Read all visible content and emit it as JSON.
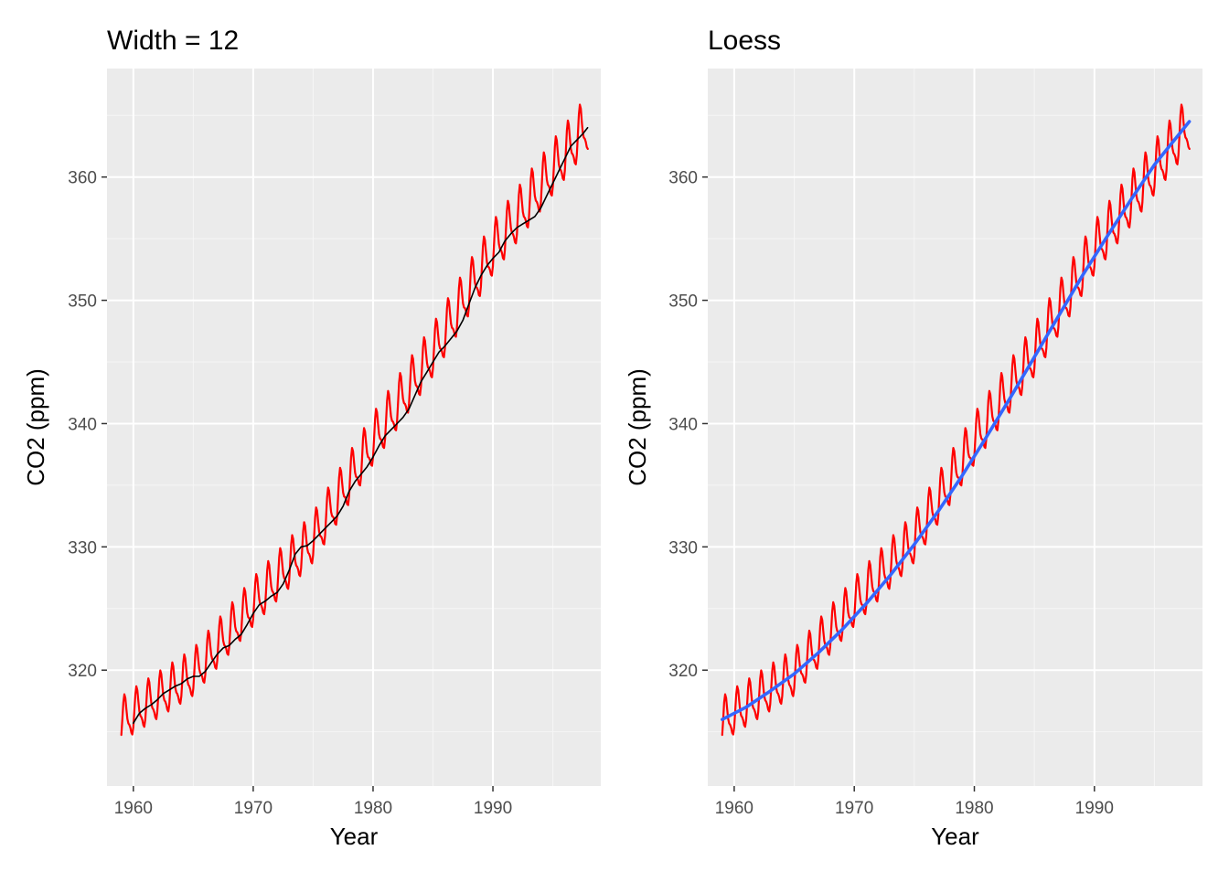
{
  "chart_data": [
    {
      "type": "line",
      "title": "Width = 12",
      "xlabel": "Year",
      "ylabel": "CO2 (ppm)",
      "xlim": [
        1957.8,
        1999.0
      ],
      "ylim": [
        310.6,
        368.8
      ],
      "x_ticks": [
        1960,
        1970,
        1980,
        1990
      ],
      "x_tick_labels": [
        "1960",
        "1970",
        "1980",
        "1990"
      ],
      "y_ticks": [
        320,
        330,
        340,
        350,
        360
      ],
      "y_tick_labels": [
        "320",
        "330",
        "340",
        "350",
        "360"
      ],
      "grid": true,
      "series": [
        {
          "role": "observed",
          "color": "#ff0000",
          "x_start": 1959.0,
          "x_step_months": 1,
          "trend": [
            [
              1959.0,
              315.8
            ],
            [
              1965.0,
              319.6
            ],
            [
              1970.0,
              325.3
            ],
            [
              1975.0,
              330.5
            ],
            [
              1980.0,
              338.5
            ],
            [
              1985.0,
              345.7
            ],
            [
              1990.0,
              354.0
            ],
            [
              1995.0,
              360.5
            ],
            [
              1997.9,
              364.2
            ]
          ],
          "seasonal_amplitude": [
            [
              1959.0,
              2.9
            ],
            [
              1975.0,
              3.2
            ],
            [
              1997.9,
              3.5
            ]
          ]
        },
        {
          "role": "moving average",
          "color": "#000000",
          "x": [
            1960.0,
            1960.5,
            1961.0,
            1961.5,
            1962.0,
            1962.5,
            1963.0,
            1963.5,
            1964.0,
            1964.5,
            1965.0,
            1965.5,
            1966.0,
            1966.5,
            1967.0,
            1967.5,
            1968.0,
            1968.5,
            1969.0,
            1969.5,
            1970.0,
            1970.5,
            1971.0,
            1971.5,
            1972.0,
            1972.5,
            1973.0,
            1973.5,
            1974.0,
            1974.5,
            1975.0,
            1975.5,
            1976.0,
            1976.5,
            1977.0,
            1977.5,
            1978.0,
            1978.5,
            1979.0,
            1979.5,
            1980.0,
            1980.5,
            1981.0,
            1981.5,
            1982.0,
            1982.5,
            1983.0,
            1983.5,
            1984.0,
            1984.5,
            1985.0,
            1985.5,
            1986.0,
            1986.5,
            1987.0,
            1987.5,
            1988.0,
            1988.5,
            1989.0,
            1989.5,
            1990.0,
            1990.5,
            1991.0,
            1991.5,
            1992.0,
            1992.5,
            1993.0,
            1993.5,
            1994.0,
            1994.5,
            1995.0,
            1995.5,
            1996.0,
            1996.5,
            1997.0,
            1997.5,
            1997.9
          ],
          "values": [
            315.7,
            316.5,
            316.9,
            317.2,
            317.6,
            318.1,
            318.4,
            318.7,
            318.9,
            319.3,
            319.5,
            319.5,
            319.9,
            320.6,
            321.3,
            321.8,
            322.0,
            322.5,
            322.9,
            323.7,
            324.6,
            325.3,
            325.6,
            326.0,
            326.3,
            327.0,
            328.1,
            329.4,
            330.0,
            330.1,
            330.5,
            331.0,
            331.5,
            332.0,
            332.5,
            333.3,
            334.5,
            335.3,
            335.9,
            336.5,
            337.3,
            338.2,
            339.0,
            339.5,
            340.0,
            340.5,
            341.2,
            342.3,
            343.4,
            344.2,
            345.0,
            345.8,
            346.3,
            346.9,
            347.5,
            348.4,
            349.7,
            351.0,
            352.0,
            352.8,
            353.4,
            353.9,
            354.8,
            355.4,
            355.9,
            356.2,
            356.5,
            356.8,
            357.5,
            358.5,
            359.5,
            360.5,
            361.5,
            362.5,
            363.0,
            363.5,
            364.0
          ]
        }
      ]
    },
    {
      "type": "line",
      "title": "Loess",
      "xlabel": "Year",
      "ylabel": "CO2 (ppm)",
      "xlim": [
        1957.8,
        1999.0
      ],
      "ylim": [
        310.6,
        368.8
      ],
      "x_ticks": [
        1960,
        1970,
        1980,
        1990
      ],
      "x_tick_labels": [
        "1960",
        "1970",
        "1980",
        "1990"
      ],
      "y_ticks": [
        320,
        330,
        340,
        350,
        360
      ],
      "y_tick_labels": [
        "320",
        "330",
        "340",
        "350",
        "360"
      ],
      "grid": true,
      "series": [
        {
          "role": "observed",
          "color": "#ff0000",
          "x_start": 1959.0,
          "x_step_months": 1,
          "trend": [
            [
              1959.0,
              315.8
            ],
            [
              1965.0,
              319.6
            ],
            [
              1970.0,
              325.3
            ],
            [
              1975.0,
              330.5
            ],
            [
              1980.0,
              338.5
            ],
            [
              1985.0,
              345.7
            ],
            [
              1990.0,
              354.0
            ],
            [
              1995.0,
              360.5
            ],
            [
              1997.9,
              364.2
            ]
          ],
          "seasonal_amplitude": [
            [
              1959.0,
              2.9
            ],
            [
              1975.0,
              3.2
            ],
            [
              1997.9,
              3.5
            ]
          ]
        },
        {
          "role": "loess",
          "color": "#3366ff",
          "x": [
            1959.0,
            1961.0,
            1963.0,
            1965.0,
            1967.0,
            1969.0,
            1971.0,
            1973.0,
            1975.0,
            1977.0,
            1979.0,
            1981.0,
            1983.0,
            1985.0,
            1987.0,
            1989.0,
            1991.0,
            1993.0,
            1995.0,
            1997.9
          ],
          "values": [
            316.0,
            317.0,
            318.3,
            319.7,
            321.4,
            323.3,
            325.4,
            327.7,
            330.2,
            332.9,
            335.8,
            338.9,
            342.1,
            345.4,
            348.7,
            352.0,
            355.1,
            358.1,
            361.0,
            364.5
          ]
        }
      ]
    }
  ]
}
